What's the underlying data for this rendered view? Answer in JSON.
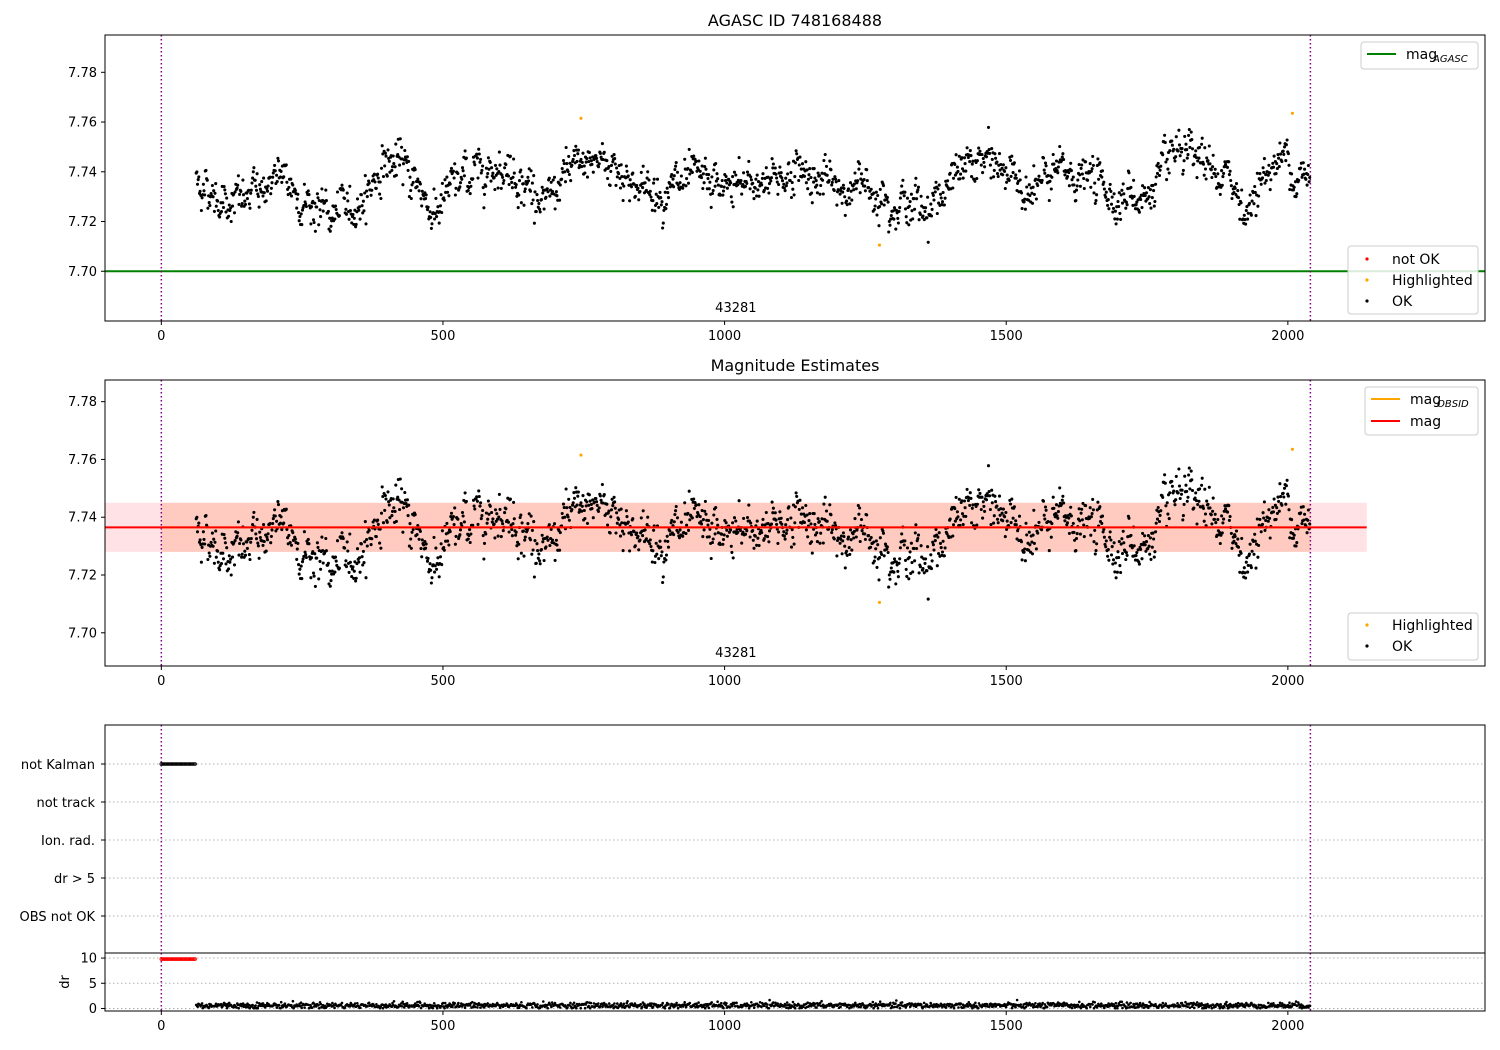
{
  "chart_data": [
    {
      "type": "scatter",
      "title": "AGASC ID 748168488",
      "xlim": [
        -100,
        2350
      ],
      "ylim": [
        7.68,
        7.795
      ],
      "xticks": [
        0,
        500,
        1000,
        1500,
        2000
      ],
      "yticks": [
        "7.70",
        "7.72",
        "7.74",
        "7.76",
        "7.78"
      ],
      "obsid_label": "43281",
      "obs_boundaries": [
        0,
        2040
      ],
      "lines": [
        {
          "name": "mag_AGASC",
          "label_main": "mag",
          "label_sub": "AGASC",
          "y": 7.7,
          "color": "#008000"
        }
      ],
      "scatter_legend": [
        {
          "name": "not OK",
          "color": "#ff0000"
        },
        {
          "name": "Highlighted",
          "color": "#ffa500"
        },
        {
          "name": "OK",
          "color": "#000000"
        }
      ],
      "series": [
        {
          "name": "OK",
          "color": "#000000",
          "x_range": [
            62,
            2040
          ],
          "level_profile": [
            [
              62,
              7.737
            ],
            [
              100,
              7.73
            ],
            [
              150,
              7.728
            ],
            [
              200,
              7.738
            ],
            [
              250,
              7.73
            ],
            [
              300,
              7.722
            ],
            [
              350,
              7.727
            ],
            [
              400,
              7.745
            ],
            [
              450,
              7.738
            ],
            [
              480,
              7.724
            ],
            [
              520,
              7.734
            ],
            [
              560,
              7.741
            ],
            [
              600,
              7.744
            ],
            [
              650,
              7.736
            ],
            [
              680,
              7.725
            ],
            [
              720,
              7.738
            ],
            [
              760,
              7.745
            ],
            [
              800,
              7.744
            ],
            [
              850,
              7.733
            ],
            [
              900,
              7.733
            ],
            [
              950,
              7.735
            ],
            [
              1000,
              7.733
            ],
            [
              1050,
              7.735
            ],
            [
              1100,
              7.739
            ],
            [
              1150,
              7.74
            ],
            [
              1200,
              7.732
            ],
            [
              1250,
              7.735
            ],
            [
              1300,
              7.73
            ],
            [
              1350,
              7.725
            ],
            [
              1400,
              7.735
            ],
            [
              1450,
              7.745
            ],
            [
              1500,
              7.74
            ],
            [
              1550,
              7.733
            ],
            [
              1600,
              7.74
            ],
            [
              1650,
              7.737
            ],
            [
              1700,
              7.73
            ],
            [
              1750,
              7.73
            ],
            [
              1800,
              7.745
            ],
            [
              1850,
              7.742
            ],
            [
              1900,
              7.735
            ],
            [
              1930,
              7.725
            ],
            [
              1960,
              7.74
            ],
            [
              2000,
              7.746
            ],
            [
              2040,
              7.734
            ]
          ],
          "scatter_sd": 0.0045
        },
        {
          "name": "Highlighted",
          "color": "#ffa500",
          "points": [
            [
              745,
              7.7615
            ],
            [
              1275,
              7.7105
            ],
            [
              2008,
              7.7635
            ]
          ]
        }
      ]
    },
    {
      "type": "scatter",
      "title": "Magnitude Estimates",
      "xlim": [
        -100,
        2350
      ],
      "ylim": [
        7.6885,
        7.7875
      ],
      "xticks": [
        0,
        500,
        1000,
        1500,
        2000
      ],
      "yticks": [
        "7.70",
        "7.72",
        "7.74",
        "7.76",
        "7.78"
      ],
      "obsid_label": "43281",
      "obs_boundaries": [
        0,
        2040
      ],
      "lines": [
        {
          "name": "mag_OBSID",
          "label_main": "mag",
          "label_sub": "OBSID",
          "y": 7.7365,
          "x_range": [
            0,
            2040
          ],
          "color": "#ffa500",
          "band": [
            7.728,
            7.745
          ],
          "band_color": "#ffa07a"
        },
        {
          "name": "mag",
          "label_main": "mag",
          "label_sub": "",
          "y": 7.7365,
          "x_range": [
            -100,
            2140
          ],
          "color": "#ff0000",
          "band": [
            7.728,
            7.745
          ],
          "band_color": "#ffb6c1"
        }
      ],
      "scatter_legend": [
        {
          "name": "Highlighted",
          "color": "#ffa500"
        },
        {
          "name": "OK",
          "color": "#000000"
        }
      ],
      "series": [
        {
          "name": "OK",
          "color": "#000000",
          "same_as_panel": 0
        },
        {
          "name": "Highlighted",
          "color": "#ffa500",
          "points": [
            [
              745,
              7.7615
            ],
            [
              1275,
              7.7105
            ],
            [
              2008,
              7.7635
            ]
          ]
        }
      ]
    },
    {
      "type": "scatter",
      "title": "",
      "xlim": [
        -100,
        2350
      ],
      "categories": [
        "not Kalman",
        "not track",
        "Ion. rad.",
        "dr > 5",
        "OBS not OK"
      ],
      "obs_boundaries": [
        0,
        2040
      ],
      "flags": [
        {
          "category": "not Kalman",
          "x_range": [
            0,
            60
          ],
          "color": "#000000"
        }
      ]
    },
    {
      "type": "scatter",
      "title": "",
      "ylabel": "dr",
      "xlim": [
        -100,
        2350
      ],
      "ylim": [
        -0.5,
        11
      ],
      "xticks": [
        0,
        500,
        1000,
        1500,
        2000
      ],
      "yticks": [
        "0",
        "5",
        "10"
      ],
      "obs_boundaries": [
        0,
        2040
      ],
      "series": [
        {
          "name": "dr",
          "color": "#000000",
          "x_range": [
            62,
            2040
          ],
          "base": 0.6,
          "scatter_sd": 0.3
        },
        {
          "name": "dr_flagged",
          "color": "#ff0000",
          "x_range": [
            0,
            60
          ],
          "y": 9.8
        }
      ]
    }
  ]
}
